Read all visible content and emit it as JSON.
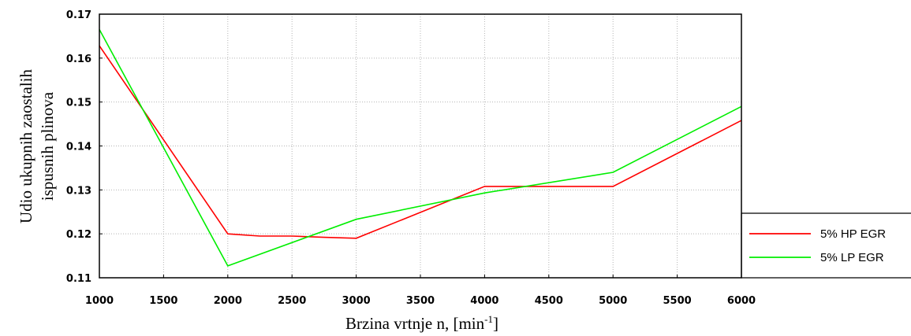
{
  "chart_data": {
    "type": "line",
    "title": "",
    "xlabel": "Brzina vrtnje n, [min-1]",
    "xlabel_main": "Brzina vrtnje n, [min",
    "xlabel_sup": "-1",
    "xlabel_close": "]",
    "ylabel": "Udio ukupnih zaostalih ispusnih plinova",
    "ylabel_line1": "Udio ukupnih zaostalih",
    "ylabel_line2": "ispusnih plinova",
    "xlim": [
      1000,
      6000
    ],
    "ylim": [
      0.11,
      0.17
    ],
    "xticks": [
      "1000",
      "1500",
      "2000",
      "2500",
      "3000",
      "3500",
      "4000",
      "4500",
      "5000",
      "5500",
      "6000"
    ],
    "yticks": [
      "0.11",
      "0.12",
      "0.13",
      "0.14",
      "0.15",
      "0.16",
      "0.17"
    ],
    "grid": true,
    "legend_position": "right",
    "series": [
      {
        "name": "5% HP EGR",
        "color": "#ff0000",
        "x": [
          1000,
          2000,
          2250,
          2500,
          2750,
          3000,
          4000,
          4500,
          5000,
          6000
        ],
        "y": [
          0.1628,
          0.12,
          0.1195,
          0.1195,
          0.1192,
          0.119,
          0.1308,
          0.1308,
          0.1308,
          0.1458
        ]
      },
      {
        "name": "5% LP EGR",
        "color": "#00ee00",
        "x": [
          1000,
          2000,
          3000,
          4000,
          5000,
          6000
        ],
        "y": [
          0.1665,
          0.1127,
          0.1233,
          0.1293,
          0.134,
          0.149
        ]
      }
    ]
  }
}
